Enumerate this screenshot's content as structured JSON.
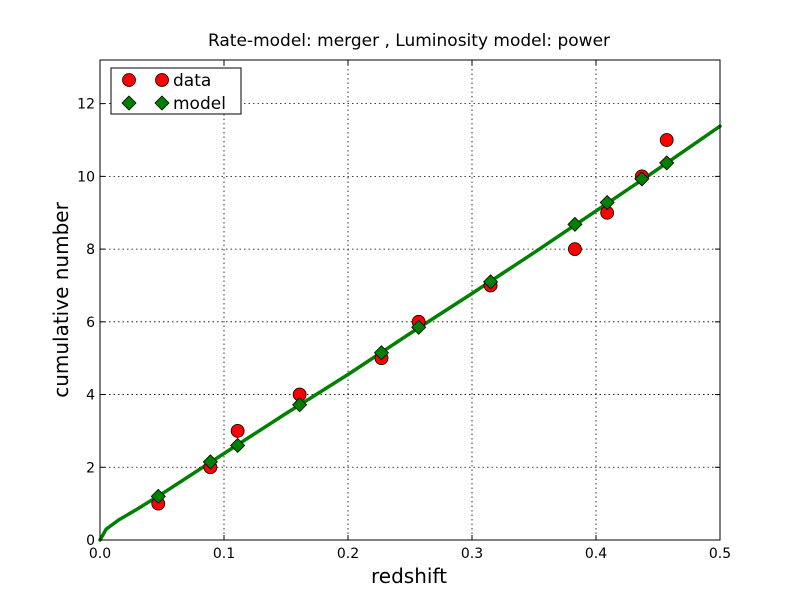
{
  "chart_data": {
    "type": "scatter",
    "title": "Rate-model: merger , Luminosity model: power",
    "xlabel": "redshift",
    "ylabel": "cumulative number",
    "xlim": [
      0.0,
      0.5
    ],
    "ylim": [
      0,
      13.2
    ],
    "xticks": [
      0.0,
      0.1,
      0.2,
      0.3,
      0.4,
      0.5
    ],
    "xtick_labels": [
      "0.0",
      "0.1",
      "0.2",
      "0.3",
      "0.4",
      "0.5"
    ],
    "yticks": [
      0,
      2,
      4,
      6,
      8,
      10,
      12
    ],
    "ytick_labels": [
      "0",
      "2",
      "4",
      "6",
      "8",
      "10",
      "12"
    ],
    "grid": true,
    "legend_position": "top-left",
    "series": [
      {
        "name": "data",
        "marker": "circle",
        "color": "#ff0000",
        "points": [
          {
            "x": 0.047,
            "y": 1
          },
          {
            "x": 0.089,
            "y": 2
          },
          {
            "x": 0.111,
            "y": 3
          },
          {
            "x": 0.161,
            "y": 4
          },
          {
            "x": 0.227,
            "y": 5
          },
          {
            "x": 0.257,
            "y": 6
          },
          {
            "x": 0.315,
            "y": 7
          },
          {
            "x": 0.383,
            "y": 8
          },
          {
            "x": 0.409,
            "y": 9
          },
          {
            "x": 0.437,
            "y": 10
          },
          {
            "x": 0.457,
            "y": 11
          }
        ]
      },
      {
        "name": "model",
        "marker": "diamond",
        "color": "#008000",
        "points": [
          {
            "x": 0.047,
            "y": 1.2
          },
          {
            "x": 0.089,
            "y": 2.15
          },
          {
            "x": 0.111,
            "y": 2.6
          },
          {
            "x": 0.161,
            "y": 3.72
          },
          {
            "x": 0.227,
            "y": 5.15
          },
          {
            "x": 0.257,
            "y": 5.85
          },
          {
            "x": 0.315,
            "y": 7.1
          },
          {
            "x": 0.383,
            "y": 8.68
          },
          {
            "x": 0.409,
            "y": 9.28
          },
          {
            "x": 0.437,
            "y": 9.93
          },
          {
            "x": 0.457,
            "y": 10.37
          }
        ]
      }
    ],
    "model_curve": {
      "color": "#008000",
      "points": [
        {
          "x": 0.0,
          "y": 0.0
        },
        {
          "x": 0.005,
          "y": 0.3
        },
        {
          "x": 0.015,
          "y": 0.55
        },
        {
          "x": 0.03,
          "y": 0.85
        },
        {
          "x": 0.05,
          "y": 1.27
        },
        {
          "x": 0.1,
          "y": 2.38
        },
        {
          "x": 0.15,
          "y": 3.48
        },
        {
          "x": 0.2,
          "y": 4.55
        },
        {
          "x": 0.25,
          "y": 5.68
        },
        {
          "x": 0.3,
          "y": 6.78
        },
        {
          "x": 0.35,
          "y": 7.9
        },
        {
          "x": 0.4,
          "y": 9.05
        },
        {
          "x": 0.45,
          "y": 10.2
        },
        {
          "x": 0.5,
          "y": 11.38
        }
      ]
    }
  }
}
